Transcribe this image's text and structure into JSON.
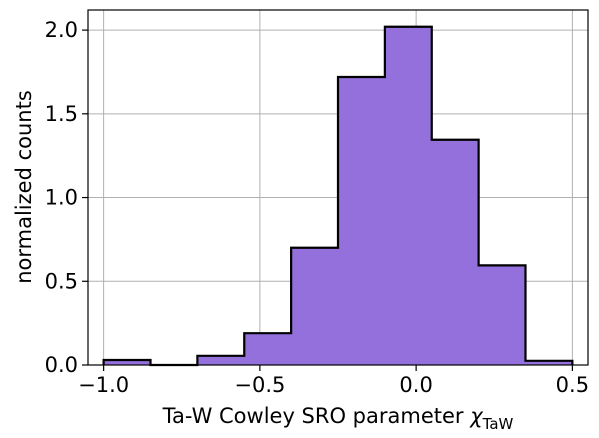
{
  "chart_data": {
    "type": "histogram",
    "xlabel": "Ta-W Cowley SRO parameter ",
    "xlabel_symbol": "χ",
    "xlabel_subscript": "TaW",
    "ylabel": "normalized counts",
    "xlim": [
      -1.05,
      0.55
    ],
    "ylim": [
      0,
      2.12
    ],
    "grid": true,
    "bar_color": "#9370DB",
    "edge_color": "#000000",
    "bin_edges": [
      -1.0,
      -0.85,
      -0.7,
      -0.55,
      -0.4,
      -0.25,
      -0.1,
      0.05,
      0.2,
      0.35,
      0.5
    ],
    "values": [
      0.03,
      0.0,
      0.055,
      0.19,
      0.7,
      1.72,
      2.02,
      1.345,
      0.595,
      0.025
    ],
    "x_ticks": [
      -1.0,
      -0.5,
      0.0,
      0.5
    ],
    "x_tick_labels": [
      "−1.0",
      "−0.5",
      "0.0",
      "0.5"
    ],
    "y_ticks": [
      0.0,
      0.5,
      1.0,
      1.5,
      2.0
    ],
    "y_tick_labels": [
      "0.0",
      "0.5",
      "1.0",
      "1.5",
      "2.0"
    ]
  }
}
